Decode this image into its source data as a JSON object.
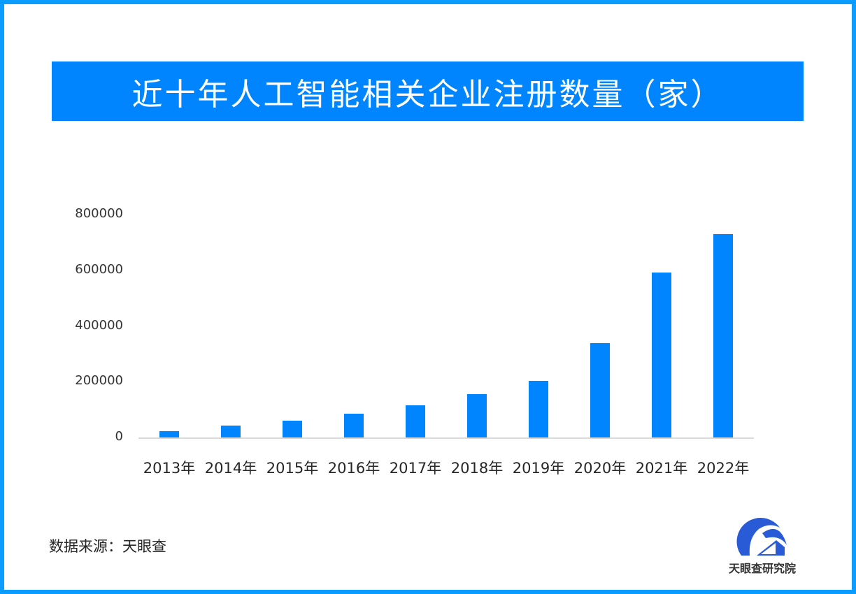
{
  "title": "近十年人工智能相关企业注册数量（家）",
  "source": "数据来源：天眼查",
  "logo": {
    "icon": "tianyancha-logo-icon",
    "text": "天眼查研究院"
  },
  "colors": {
    "border": "#0a9cff",
    "title_band": "#0085ff",
    "bar": "#0085ff",
    "axis": "#d9d9d9"
  },
  "y_ticks": [
    "800000",
    "600000",
    "400000",
    "200000",
    "0"
  ],
  "chart_data": {
    "type": "bar",
    "title": "近十年人工智能相关企业注册数量（家）",
    "xlabel": "",
    "ylabel": "",
    "categories": [
      "2013年",
      "2014年",
      "2015年",
      "2016年",
      "2017年",
      "2018年",
      "2019年",
      "2020年",
      "2021年",
      "2022年"
    ],
    "values": [
      23000,
      43000,
      60000,
      85000,
      115000,
      155000,
      203000,
      339000,
      592000,
      730000
    ],
    "ylim": [
      0,
      800000
    ],
    "yticks": [
      0,
      200000,
      400000,
      600000,
      800000
    ],
    "grid": false,
    "legend": "none"
  }
}
